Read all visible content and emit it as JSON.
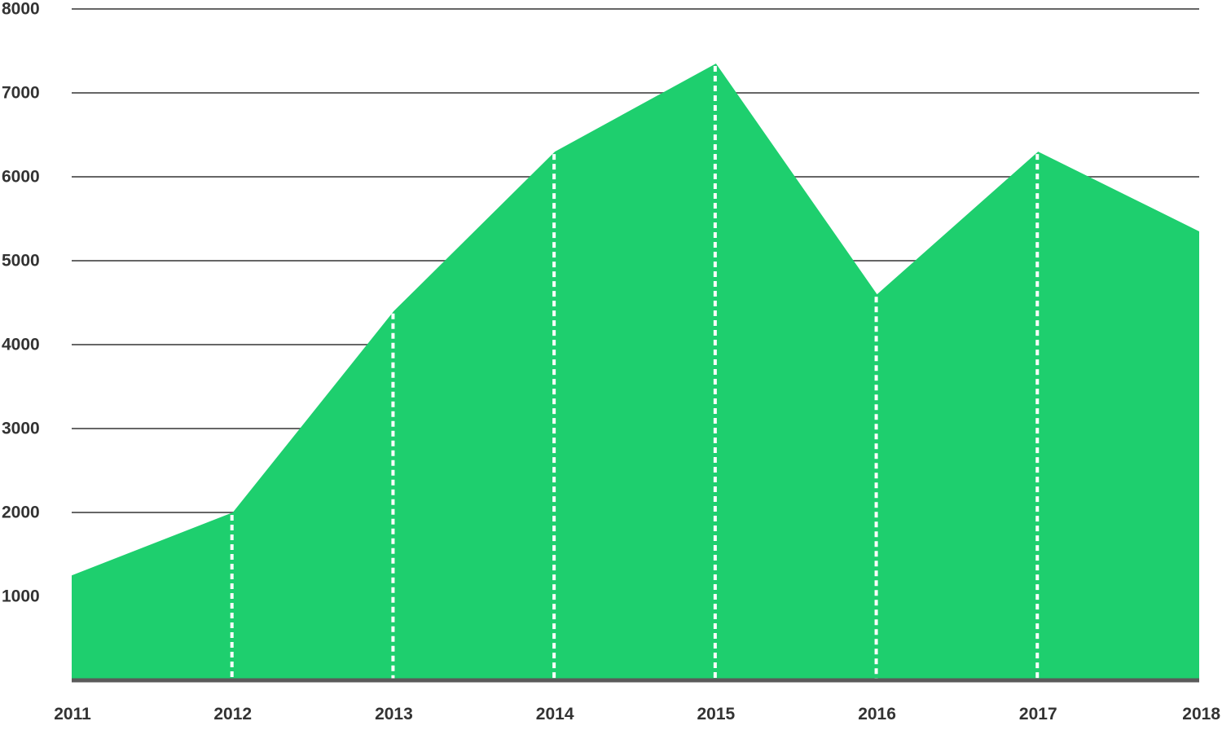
{
  "chart_data": {
    "type": "area",
    "x": [
      "2011",
      "2012",
      "2013",
      "2014",
      "2015",
      "2016",
      "2017",
      "2018"
    ],
    "series": [
      {
        "values": [
          1250,
          2000,
          4400,
          6300,
          7350,
          4600,
          6300,
          5350
        ]
      }
    ],
    "title": "",
    "xlabel": "",
    "ylabel": "",
    "ylim": [
      0,
      8000
    ],
    "yticks": [
      1000,
      2000,
      3000,
      4000,
      5000,
      6000,
      7000,
      8000
    ],
    "yticklabels": [
      "1000",
      "2000",
      "3000",
      "4000",
      "5000",
      "6000",
      "7000",
      "8000"
    ],
    "grid": true,
    "drop_lines": "dashed-white",
    "colors": {
      "area": "#1ecf6e",
      "grid": "#666666",
      "baseline": "#5a5a5a",
      "drop_line": "#ffffff",
      "text": "#333333"
    }
  }
}
